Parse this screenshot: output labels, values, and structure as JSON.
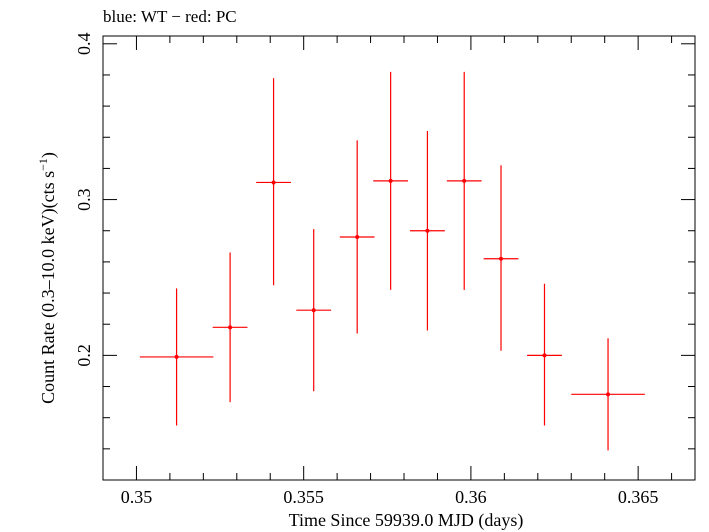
{
  "chart_data": {
    "type": "scatter",
    "title": "blue: WT − red: PC",
    "xlabel": "Time Since 59939.0 MJD (days)",
    "ylabel_main": "Count Rate (0.3–10.0 keV)(cts s",
    "ylabel_sup": "−1",
    "ylabel_close": ")",
    "xlim": [
      0.349,
      0.3667
    ],
    "ylim": [
      0.12,
      0.405
    ],
    "xticks": [
      0.35,
      0.355,
      0.36,
      0.365
    ],
    "xtick_labels": [
      "0.35",
      "0.355",
      "0.36",
      "0.365"
    ],
    "yticks": [
      0.2,
      0.3,
      0.4
    ],
    "ytick_labels": [
      "0.2",
      "0.3",
      "0.4"
    ],
    "series": [
      {
        "color": "#ff0000",
        "points": [
          {
            "x": 0.3512,
            "xerr": 0.0011,
            "y": 0.199,
            "ylo": 0.155,
            "yhi": 0.243
          },
          {
            "x": 0.3528,
            "xerr": 0.00052,
            "y": 0.218,
            "ylo": 0.17,
            "yhi": 0.266
          },
          {
            "x": 0.3541,
            "xerr": 0.00052,
            "y": 0.311,
            "ylo": 0.245,
            "yhi": 0.378
          },
          {
            "x": 0.3553,
            "xerr": 0.00052,
            "y": 0.229,
            "ylo": 0.177,
            "yhi": 0.281
          },
          {
            "x": 0.3566,
            "xerr": 0.00052,
            "y": 0.276,
            "ylo": 0.214,
            "yhi": 0.338
          },
          {
            "x": 0.3576,
            "xerr": 0.00052,
            "y": 0.312,
            "ylo": 0.242,
            "yhi": 0.382
          },
          {
            "x": 0.3587,
            "xerr": 0.00052,
            "y": 0.28,
            "ylo": 0.216,
            "yhi": 0.344
          },
          {
            "x": 0.3598,
            "xerr": 0.00052,
            "y": 0.312,
            "ylo": 0.242,
            "yhi": 0.382
          },
          {
            "x": 0.3609,
            "xerr": 0.00052,
            "y": 0.262,
            "ylo": 0.203,
            "yhi": 0.322
          },
          {
            "x": 0.3622,
            "xerr": 0.00052,
            "y": 0.2,
            "ylo": 0.155,
            "yhi": 0.246
          },
          {
            "x": 0.3641,
            "xerr": 0.0011,
            "y": 0.175,
            "ylo": 0.139,
            "yhi": 0.211
          }
        ]
      }
    ]
  }
}
